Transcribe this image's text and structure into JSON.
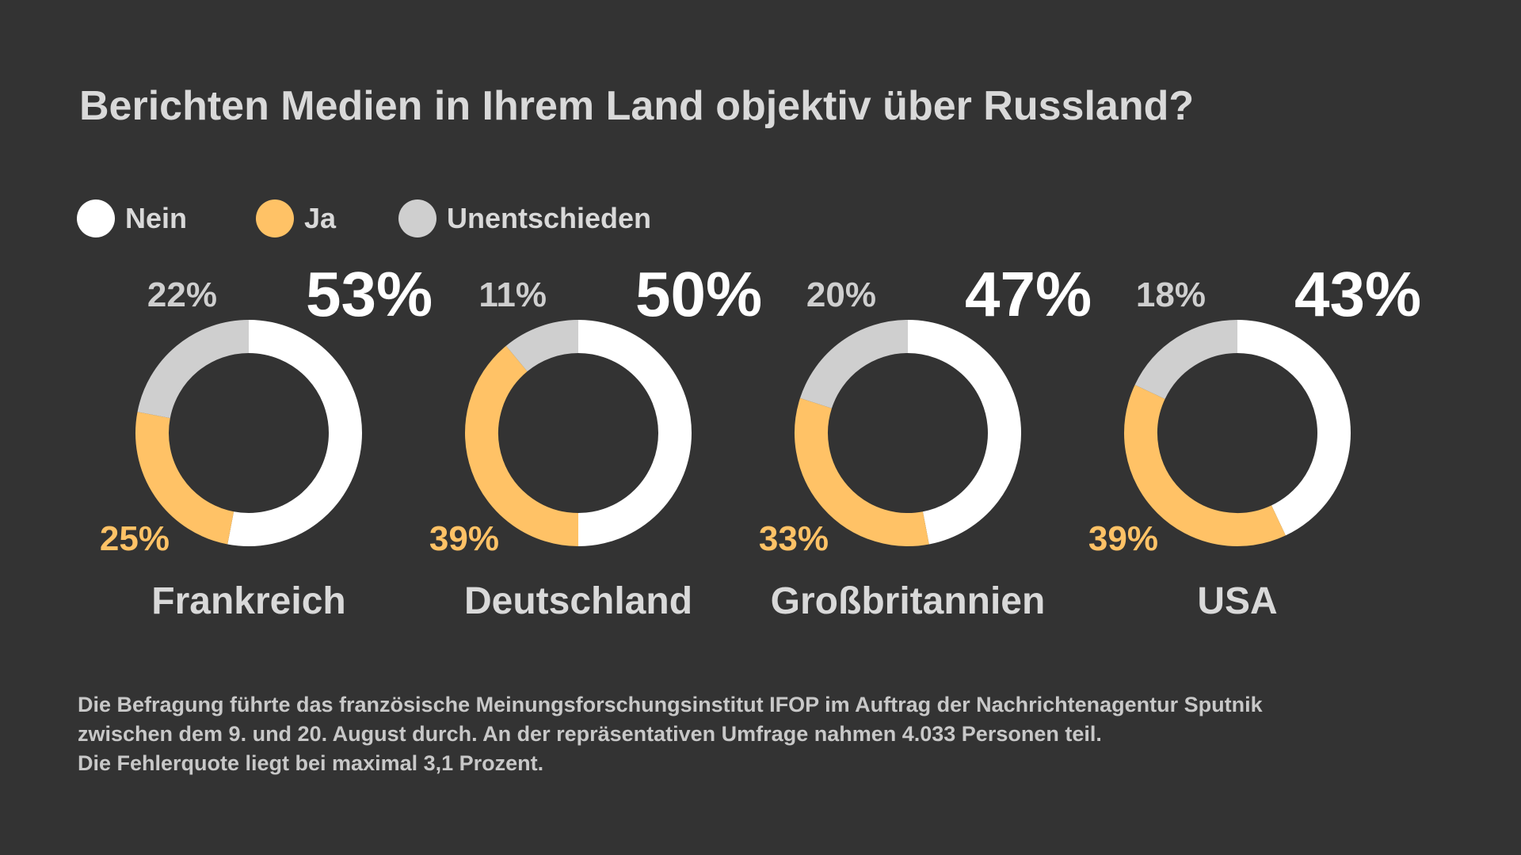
{
  "title": "Berichten Medien in Ihrem Land objektiv über Russland?",
  "colors": {
    "background": "#333333",
    "nein": "#ffffff",
    "ja": "#ffc266",
    "unentschieden": "#cfcfcf",
    "text": "#d9d9d9"
  },
  "legend": [
    {
      "label": "Nein",
      "color": "#ffffff"
    },
    {
      "label": "Ja",
      "color": "#ffc266"
    },
    {
      "label": "Unentschieden",
      "color": "#cfcfcf"
    }
  ],
  "chart_data": {
    "type": "pie",
    "variant": "donut",
    "title": "Berichten Medien in Ihrem Land objektiv über Russland?",
    "series_names": [
      "Nein",
      "Ja",
      "Unentschieden"
    ],
    "charts": [
      {
        "country": "Frankreich",
        "values": {
          "Nein": 53,
          "Ja": 25,
          "Unentschieden": 22
        },
        "labels": {
          "Nein": "53%",
          "Ja": "25%",
          "Unentschieden": "22%"
        }
      },
      {
        "country": "Deutschland",
        "values": {
          "Nein": 50,
          "Ja": 39,
          "Unentschieden": 11
        },
        "labels": {
          "Nein": "50%",
          "Ja": "39%",
          "Unentschieden": "11%"
        }
      },
      {
        "country": "Großbritannien",
        "values": {
          "Nein": 47,
          "Ja": 33,
          "Unentschieden": 20
        },
        "labels": {
          "Nein": "47%",
          "Ja": "33%",
          "Unentschieden": "20%"
        }
      },
      {
        "country": "USA",
        "values": {
          "Nein": 43,
          "Ja": 39,
          "Unentschieden": 18
        },
        "labels": {
          "Nein": "43%",
          "Ja": "39%",
          "Unentschieden": "18%"
        }
      }
    ]
  },
  "footnote": [
    "Die Befragung führte das französische Meinungsforschungsinstitut IFOP im Auftrag der Nachrichtenagentur Sputnik",
    "zwischen dem 9. und 20. August durch. An der repräsentativen Umfrage nahmen 4.033 Personen teil.",
    "Die Fehlerquote liegt bei maximal 3,1 Prozent."
  ]
}
